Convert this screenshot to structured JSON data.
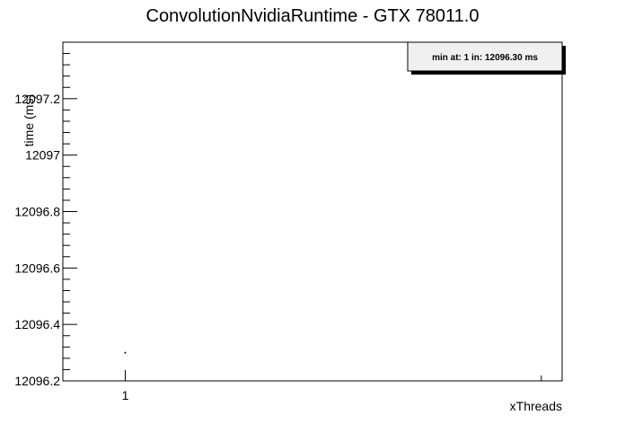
{
  "chart_data": {
    "type": "scatter",
    "title": "ConvolutionNvidiaRuntime - GTX 78011.0",
    "xlabel": "xThreads",
    "ylabel": "time (ms)",
    "x_ticks": [
      1
    ],
    "x_tick_labels": [
      "1"
    ],
    "xlim": [
      0.85,
      2.05
    ],
    "ylim": [
      12096.2,
      12097.4
    ],
    "y_ticks_major": [
      12096.2,
      12096.4,
      12096.6,
      12096.8,
      12097,
      12097.2
    ],
    "y_tick_labels": [
      "12096.2",
      "12096.4",
      "12096.6",
      "12096.8",
      "12097",
      "12097.2"
    ],
    "series": [
      {
        "x": [
          1
        ],
        "values": [
          12096.3
        ]
      }
    ],
    "annotation": "min at: 1 in: 12096.30 ms",
    "legend_position": "top-right",
    "grid": false
  }
}
